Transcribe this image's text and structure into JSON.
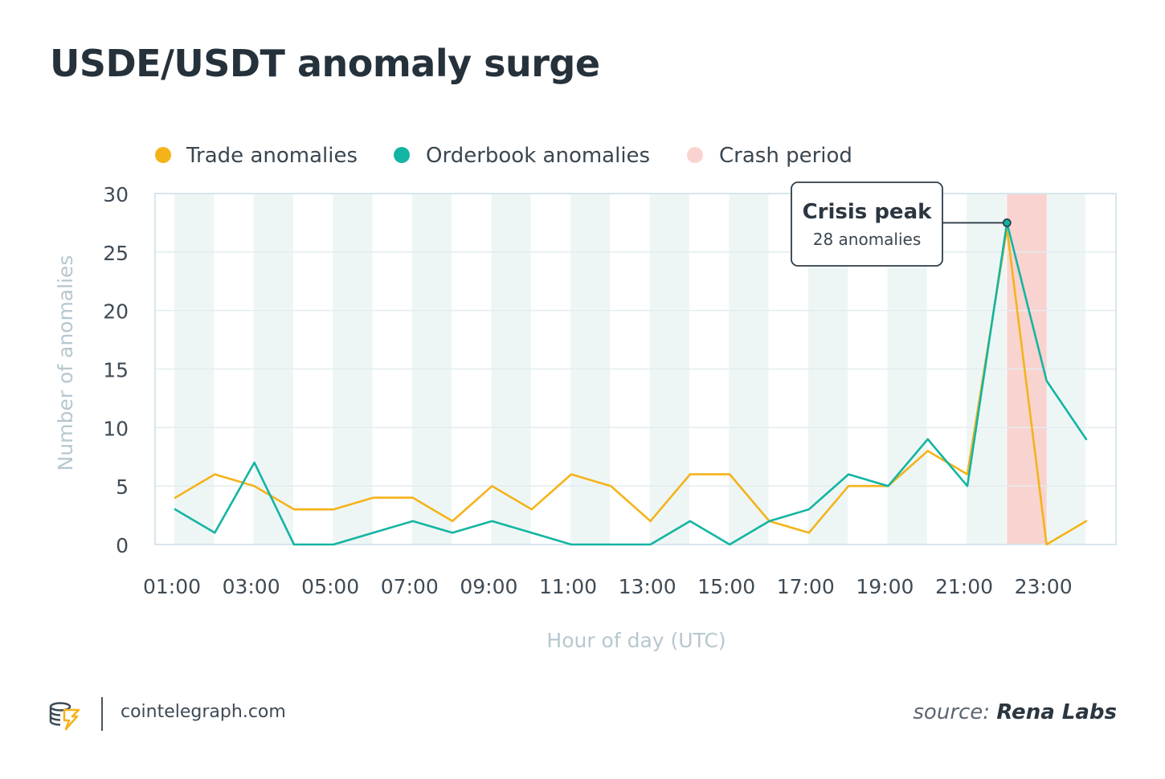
{
  "chart_data": {
    "type": "line",
    "title": "USDE/USDT anomaly surge",
    "xlabel": "Hour of day (UTC)",
    "ylabel": "Number of anomalies",
    "ylim": [
      0,
      30
    ],
    "y_ticks": [
      0,
      5,
      10,
      15,
      20,
      25,
      30
    ],
    "x": [
      "01:00",
      "02:00",
      "03:00",
      "04:00",
      "05:00",
      "06:00",
      "07:00",
      "08:00",
      "09:00",
      "10:00",
      "11:00",
      "12:00",
      "13:00",
      "14:00",
      "15:00",
      "16:00",
      "17:00",
      "18:00",
      "19:00",
      "20:00",
      "21:00",
      "22:00",
      "23:00",
      "24:00"
    ],
    "x_tick_labels": [
      "01:00",
      "03:00",
      "05:00",
      "07:00",
      "09:00",
      "11:00",
      "13:00",
      "15:00",
      "17:00",
      "19:00",
      "21:00",
      "23:00"
    ],
    "series": [
      {
        "name": "Trade anomalies",
        "color": "#f5b31a",
        "values": [
          4,
          6,
          5,
          3,
          3,
          4,
          4,
          2,
          5,
          3,
          6,
          5,
          2,
          6,
          6,
          2,
          1,
          5,
          5,
          8,
          6,
          27,
          0,
          2
        ]
      },
      {
        "name": "Orderbook anomalies",
        "color": "#13b5a2",
        "values": [
          3,
          1,
          7,
          0,
          0,
          1,
          2,
          1,
          2,
          1,
          0,
          0,
          0,
          2,
          0,
          2,
          3,
          6,
          5,
          9,
          5,
          27.5,
          14,
          9
        ]
      }
    ],
    "crash_period": {
      "label": "Crash period",
      "color": "#f9d3cf",
      "from": "22:00",
      "to": "23:00"
    },
    "annotation": {
      "title": "Crisis peak",
      "text": "28 anomalies",
      "x": "22:00",
      "y": 27.5
    },
    "grid": true,
    "legend": "top"
  },
  "footer": {
    "site": "cointelegraph.com",
    "source_label": "source:",
    "source_name": "Rena Labs"
  }
}
